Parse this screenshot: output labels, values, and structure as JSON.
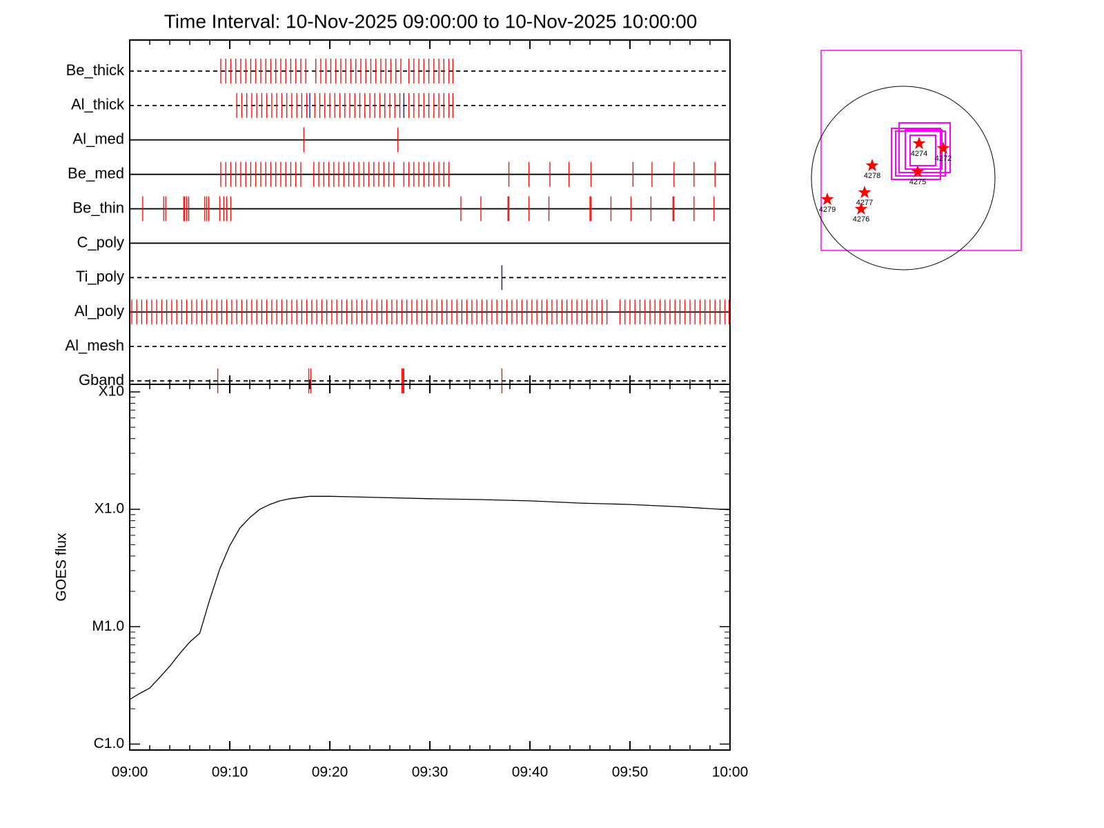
{
  "chart_data": [
    {
      "type": "event",
      "title": "Time Interval: 10-Nov-2025 09:00:00 to 10-Nov-2025 10:00:00",
      "xlim": [
        0,
        60
      ],
      "xticks": [
        0,
        10,
        20,
        30,
        40,
        50,
        60
      ],
      "xminorticks": [
        2,
        4,
        6,
        8,
        12,
        14,
        16,
        18,
        22,
        24,
        26,
        28,
        32,
        34,
        36,
        38,
        42,
        44,
        46,
        48,
        52,
        54,
        56,
        58
      ],
      "series": [
        {
          "name": "Be_thick",
          "line": "dashed",
          "events": [
            {
              "color": "#ff0000",
              "x": [
                9.1,
                9.6,
                10.1,
                10.6,
                11.1,
                11.6,
                12.1,
                12.6,
                13.1,
                13.6,
                14.1,
                14.6,
                15.1,
                15.6,
                16.1,
                16.6,
                17.1,
                17.6,
                18.6,
                19.1,
                19.6,
                20.1,
                20.6,
                21.1,
                21.6,
                22.1,
                22.6,
                23.1,
                23.6,
                24.1,
                24.6,
                25.1,
                25.6,
                26.1,
                26.6,
                27.1,
                27.9,
                28.4,
                28.9,
                29.4,
                29.9,
                30.4,
                30.9,
                31.4,
                31.9,
                32.3
              ]
            }
          ]
        },
        {
          "name": "Al_thick",
          "line": "dashed",
          "events": [
            {
              "color": "#ff0000",
              "x": [
                10.7,
                11.2,
                11.7,
                12.2,
                12.7,
                13.2,
                13.7,
                14.2,
                14.7,
                15.2,
                15.7,
                16.2,
                16.7,
                17.2,
                17.7,
                18.5,
                19,
                19.5,
                20,
                20.5,
                21,
                21.5,
                22,
                22.5,
                23,
                23.5,
                24,
                24.5,
                25,
                25.5,
                26,
                26.5,
                27,
                27.9,
                28.4,
                28.9,
                29.4,
                29.9,
                30.4,
                30.9,
                31.4,
                31.9,
                32.3
              ]
            },
            {
              "color": "#0000cc",
              "x": [
                18.0,
                27.4
              ]
            }
          ]
        },
        {
          "name": "Al_med",
          "line": "solid",
          "events": [
            {
              "color": "#ff0000",
              "x": [
                17.4,
                26.8
              ]
            }
          ]
        },
        {
          "name": "Be_med",
          "line": "solid",
          "events": [
            {
              "color": "#ff0000",
              "x": [
                9.1,
                9.6,
                10.1,
                10.6,
                11.1,
                11.6,
                12.1,
                12.6,
                13.1,
                13.6,
                14.1,
                14.6,
                15.1,
                15.6,
                16.1,
                16.6,
                17.1,
                18.4,
                18.9,
                19.4,
                19.9,
                20.4,
                20.9,
                21.4,
                21.9,
                22.4,
                22.9,
                23.4,
                23.9,
                24.4,
                24.9,
                25.4,
                25.9,
                26.4,
                27.4,
                27.9,
                28.4,
                28.9,
                29.4,
                29.9,
                30.4,
                30.9,
                31.4,
                31.9,
                37.9,
                39.9,
                42.0,
                43.9,
                46.1,
                50.3,
                52.2,
                54.4,
                56.4,
                58.5
              ]
            }
          ]
        },
        {
          "name": "Be_thin",
          "line": "solid",
          "events": [
            {
              "color": "#ff0000",
              "x": [
                1.3,
                3.4,
                3.6,
                5.4,
                5.5,
                5.7,
                5.9,
                7.5,
                7.7,
                7.9,
                9.0,
                9.4,
                9.7,
                10.1,
                33.1,
                35.1,
                37.8,
                37.9,
                39.9,
                41.9,
                46.0,
                46.1,
                48.1,
                50.1,
                52.1,
                54.3,
                54.4,
                56.4,
                58.4
              ]
            }
          ]
        },
        {
          "name": "C_poly",
          "line": "solid",
          "events": []
        },
        {
          "name": "Ti_poly",
          "line": "dashed",
          "events": [
            {
              "color": "#0000cc",
              "x": [
                37.2
              ]
            }
          ]
        },
        {
          "name": "Al_poly",
          "line": "solid",
          "events": [
            {
              "color": "#ff0000",
              "x": [
                0.2,
                0.7,
                1.2,
                1.7,
                2.2,
                2.7,
                3.2,
                3.7,
                4.2,
                4.7,
                5.2,
                5.7,
                6.2,
                6.7,
                7.2,
                7.7,
                8.2,
                8.7,
                9.2,
                9.7,
                10.2,
                10.7,
                11.2,
                11.7,
                12.2,
                12.7,
                13.2,
                13.7,
                14.2,
                14.7,
                15.2,
                15.7,
                16.2,
                16.7,
                17.2,
                17.7,
                18.2,
                18.7,
                19.2,
                19.7,
                20.2,
                20.7,
                21.2,
                21.7,
                22.2,
                22.7,
                23.2,
                23.7,
                24.2,
                24.7,
                25.2,
                25.7,
                26.2,
                26.7,
                27.2,
                27.7,
                28.2,
                28.7,
                29.2,
                29.7,
                30.2,
                30.7,
                31.2,
                31.7,
                32.2,
                32.7,
                33.2,
                33.7,
                34.2,
                34.7,
                35.2,
                35.7,
                36.2,
                36.7,
                37.2,
                37.7,
                38.2,
                38.7,
                39.2,
                39.7,
                40.2,
                40.7,
                41.2,
                41.7,
                42.2,
                42.7,
                43.2,
                43.7,
                44.2,
                44.7,
                45.2,
                45.7,
                46.2,
                46.7,
                47.2,
                47.7,
                49.0,
                49.5,
                50.0,
                50.5,
                51.0,
                51.5,
                52.0,
                52.5,
                53.0,
                53.5,
                54.0,
                54.5,
                55.0,
                55.5,
                56.0,
                56.5,
                57.0,
                57.5,
                58.0,
                58.5,
                59.0,
                59.5,
                59.9
              ]
            }
          ]
        },
        {
          "name": "Al_mesh",
          "line": "dashed",
          "events": []
        },
        {
          "name": "Gband",
          "line": "dashed",
          "events": [
            {
              "color": "#ff0000",
              "x": [
                8.8,
                17.9,
                18.1,
                27.2,
                27.3,
                27.4,
                37.2
              ]
            }
          ]
        }
      ]
    },
    {
      "type": "line",
      "ylabel": "GOES flux",
      "log_scale": true,
      "color": "#000000",
      "xlim": [
        0,
        60
      ],
      "xticks": [
        {
          "value": 0,
          "label": "09:00"
        },
        {
          "value": 10,
          "label": "09:10"
        },
        {
          "value": 20,
          "label": "09:20"
        },
        {
          "value": 30,
          "label": "09:30"
        },
        {
          "value": 40,
          "label": "09:40"
        },
        {
          "value": 50,
          "label": "09:50"
        },
        {
          "value": 60,
          "label": "10:00"
        }
      ],
      "xminorticks": [
        2,
        4,
        6,
        8,
        12,
        14,
        16,
        18,
        22,
        24,
        26,
        28,
        32,
        34,
        36,
        38,
        42,
        44,
        46,
        48,
        52,
        54,
        56,
        58
      ],
      "ylim": [
        8.9e-07,
        0.00116
      ],
      "yticks": [
        {
          "value": 1e-06,
          "label": "C1.0"
        },
        {
          "value": 1e-05,
          "label": "M1.0"
        },
        {
          "value": 0.0001,
          "label": "X1.0"
        },
        {
          "value": 0.001,
          "label": "X10"
        }
      ],
      "yminorticks": [
        2e-06,
        3e-06,
        4e-06,
        5e-06,
        6e-06,
        7e-06,
        8e-06,
        9e-06,
        2e-05,
        3e-05,
        4e-05,
        5e-05,
        6e-05,
        7e-05,
        8e-05,
        9e-05,
        0.0002,
        0.0003,
        0.0004,
        0.0005,
        0.0006,
        0.0007,
        0.0008,
        0.0009
      ],
      "x": [
        0,
        1,
        2,
        3,
        4,
        5,
        6,
        7,
        8,
        9,
        10,
        11,
        12,
        13,
        14,
        15,
        16,
        18,
        20,
        25,
        30,
        35,
        40,
        45,
        50,
        55,
        60
      ],
      "values": [
        2.4e-06,
        2.7e-06,
        3e-06,
        3.7e-06,
        4.6e-06,
        5.9e-06,
        7.4e-06,
        8.8e-06,
        1.7e-05,
        3.1e-05,
        4.9e-05,
        6.9e-05,
        8.5e-05,
        0.0001,
        0.00011,
        0.000118,
        0.000123,
        0.000129,
        0.000129,
        0.000126,
        0.000123,
        0.000121,
        0.000118,
        0.000113,
        0.00011,
        0.000105,
        9.9e-05
      ]
    },
    {
      "type": "map",
      "regions": [
        "4274",
        "4272",
        "4278",
        "4275",
        "4277",
        "4279",
        "4276"
      ]
    }
  ]
}
